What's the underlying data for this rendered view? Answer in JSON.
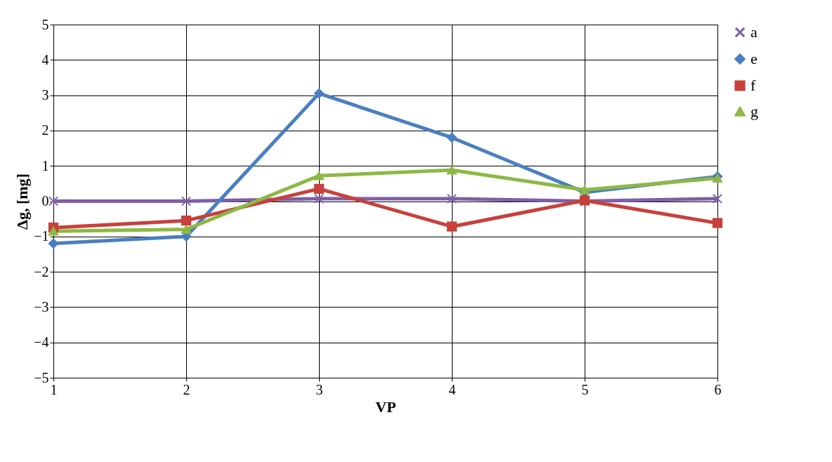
{
  "chart_data": {
    "type": "line",
    "xlabel": "VP",
    "ylabel": "Δg, [mg]",
    "categories": [
      "1",
      "2",
      "3",
      "4",
      "5",
      "6"
    ],
    "series": [
      {
        "name": "a",
        "color": "#7f5fa6",
        "marker": "cross",
        "values": [
          0,
          0,
          0.07,
          0.07,
          0,
          0.07
        ]
      },
      {
        "name": "e",
        "color": "#4a7fc1",
        "marker": "diamond",
        "values": [
          -1.2,
          -1.0,
          3.05,
          1.8,
          0.25,
          0.7
        ]
      },
      {
        "name": "f",
        "color": "#c8403c",
        "marker": "square",
        "values": [
          -0.75,
          -0.55,
          0.35,
          -0.72,
          0.02,
          -0.62
        ]
      },
      {
        "name": "g",
        "color": "#8db843",
        "marker": "triangle",
        "values": [
          -0.85,
          -0.8,
          0.72,
          0.88,
          0.32,
          0.65
        ]
      }
    ],
    "ylim": [
      -5,
      5
    ],
    "yticks": [
      -5,
      -4,
      -3,
      -2,
      -1,
      0,
      1,
      2,
      3,
      4,
      5
    ],
    "grid": true,
    "legend": "right"
  }
}
